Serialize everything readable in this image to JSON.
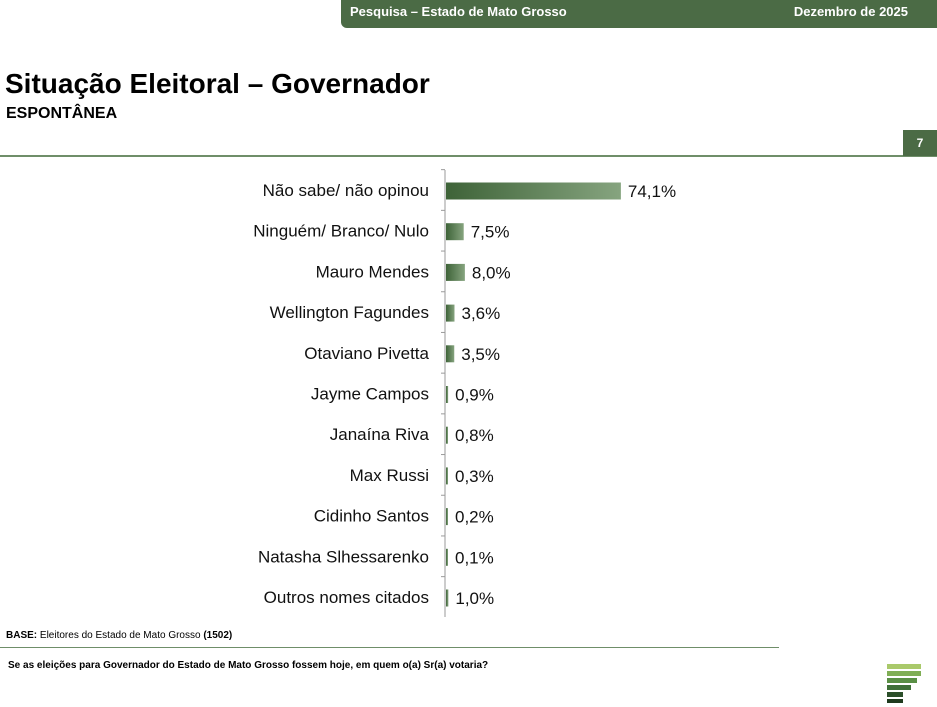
{
  "header": {
    "survey": "Pesquisa – Estado de Mato Grosso",
    "date": "Dezembro de 2025"
  },
  "title": "Situação Eleitoral – Governador",
  "subtitle": "ESPONTÂNEA",
  "page_number": "7",
  "colors": {
    "bar_dark": "#3e6338",
    "bar_light": "#86a47f",
    "accent": "#4b6b45"
  },
  "chart_data": {
    "type": "bar",
    "orientation": "horizontal",
    "categories": [
      "Não sabe/ não opinou",
      "Ninguém/ Branco/ Nulo",
      "Mauro Mendes",
      "Wellington Fagundes",
      "Otaviano Pivetta",
      "Jayme Campos",
      "Janaína Riva",
      "Max Russi",
      "Cidinho Santos",
      "Natasha Slhessarenko",
      "Outros nomes citados"
    ],
    "values": [
      74.1,
      7.5,
      8.0,
      3.6,
      3.5,
      0.9,
      0.8,
      0.3,
      0.2,
      0.1,
      1.0
    ],
    "value_labels": [
      "74,1%",
      "7,5%",
      "8,0%",
      "3,6%",
      "3,5%",
      "0,9%",
      "0,8%",
      "0,3%",
      "0,2%",
      "0,1%",
      "1,0%"
    ],
    "xlim": [
      0,
      100
    ],
    "grid": false,
    "legend": "none"
  },
  "footer": {
    "base_label": "BASE:",
    "base_text": "Eleitores do Estado de Mato Grosso",
    "base_n": "(1502)",
    "question": "Se as eleições para Governador do Estado de Mato Grosso fossem hoje, em quem o(a) Sr(a) votaria?"
  },
  "logo_icon": "bars-logo-icon"
}
